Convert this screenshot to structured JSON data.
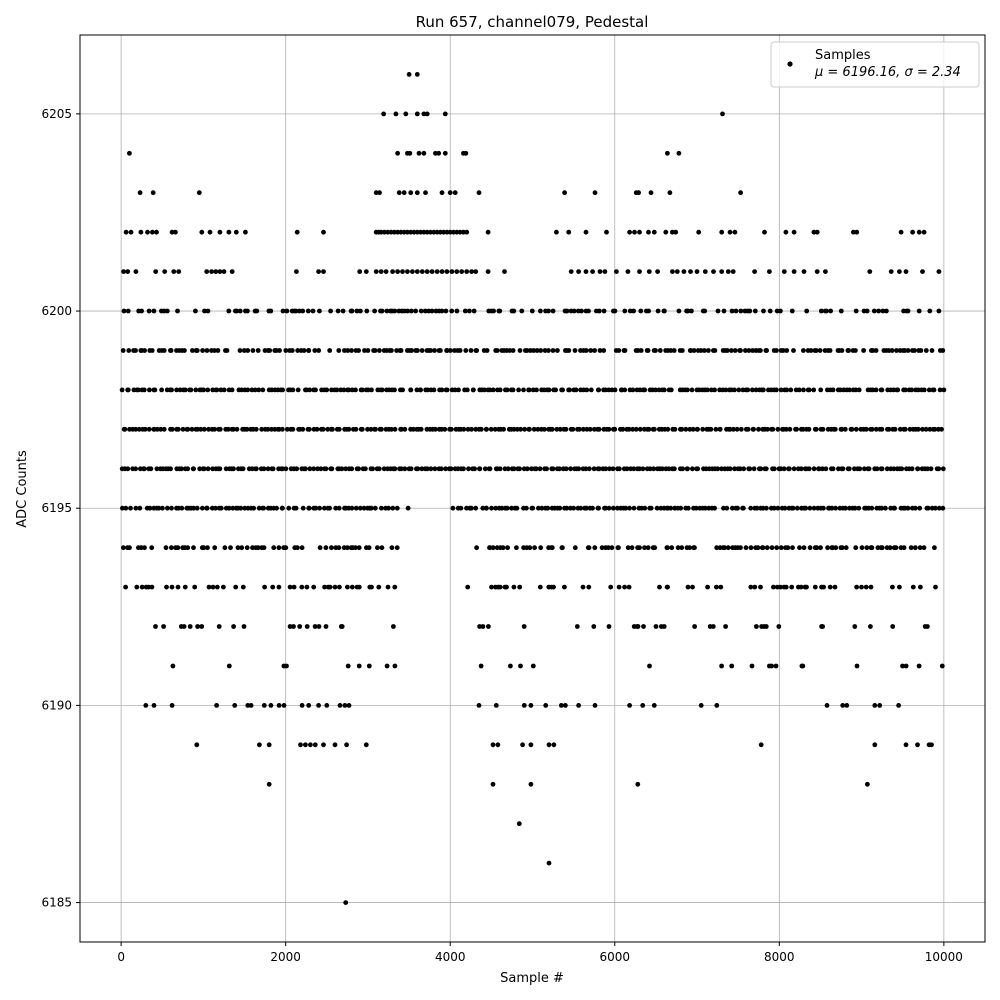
{
  "chart_data": {
    "type": "scatter",
    "title": "Run 657, channel079, Pedestal",
    "xlabel": "Sample #",
    "ylabel": "ADC Counts",
    "xlim": [
      -500,
      10500
    ],
    "ylim": [
      6184,
      6207
    ],
    "xticks": [
      "0",
      "2000",
      "4000",
      "6000",
      "8000",
      "10000"
    ],
    "yticks": [
      "6185",
      "6190",
      "6195",
      "6200",
      "6205"
    ],
    "grid": true,
    "legend": {
      "placement": "top-right",
      "entries": [
        {
          "name": "Samples",
          "stats": "μ = 6196.16, σ = 2.34"
        }
      ]
    },
    "series": [
      {
        "name": "Samples",
        "color": "#000000",
        "marker": "dot",
        "n_samples": 10000,
        "dense_levels": [
          6191,
          6192,
          6193,
          6194,
          6195,
          6196,
          6197,
          6198,
          6199,
          6200
        ],
        "points": [
          {
            "x": 2730,
            "y": 6185
          },
          {
            "x": 5200,
            "y": 6186
          },
          {
            "x": 4840,
            "y": 6187
          },
          {
            "x": 1800,
            "y": 6188
          },
          {
            "x": 4520,
            "y": 6188
          },
          {
            "x": 4980,
            "y": 6188
          },
          {
            "x": 6280,
            "y": 6188
          },
          {
            "x": 9070,
            "y": 6188
          },
          {
            "x": 920,
            "y": 6189
          },
          {
            "x": 1680,
            "y": 6189
          },
          {
            "x": 1800,
            "y": 6189
          },
          {
            "x": 2180,
            "y": 6189
          },
          {
            "x": 2240,
            "y": 6189
          },
          {
            "x": 2300,
            "y": 6189
          },
          {
            "x": 2360,
            "y": 6189
          },
          {
            "x": 2460,
            "y": 6189
          },
          {
            "x": 2600,
            "y": 6189
          },
          {
            "x": 2740,
            "y": 6189
          },
          {
            "x": 2980,
            "y": 6189
          },
          {
            "x": 4520,
            "y": 6189
          },
          {
            "x": 4580,
            "y": 6189
          },
          {
            "x": 4880,
            "y": 6189
          },
          {
            "x": 4980,
            "y": 6189
          },
          {
            "x": 5200,
            "y": 6189
          },
          {
            "x": 5260,
            "y": 6189
          },
          {
            "x": 7780,
            "y": 6189
          },
          {
            "x": 9160,
            "y": 6189
          },
          {
            "x": 9540,
            "y": 6189
          },
          {
            "x": 9680,
            "y": 6189
          },
          {
            "x": 9820,
            "y": 6189
          },
          {
            "x": 9850,
            "y": 6189
          },
          {
            "x": 300,
            "y": 6190
          },
          {
            "x": 400,
            "y": 6190
          },
          {
            "x": 620,
            "y": 6190
          },
          {
            "x": 1160,
            "y": 6190
          },
          {
            "x": 1380,
            "y": 6190
          },
          {
            "x": 1540,
            "y": 6190
          },
          {
            "x": 1580,
            "y": 6190
          },
          {
            "x": 1740,
            "y": 6190
          },
          {
            "x": 1820,
            "y": 6190
          },
          {
            "x": 1920,
            "y": 6190
          },
          {
            "x": 1980,
            "y": 6190
          },
          {
            "x": 2200,
            "y": 6190
          },
          {
            "x": 2280,
            "y": 6190
          },
          {
            "x": 2400,
            "y": 6190
          },
          {
            "x": 2500,
            "y": 6190
          },
          {
            "x": 2660,
            "y": 6190
          },
          {
            "x": 2720,
            "y": 6190
          },
          {
            "x": 2770,
            "y": 6190
          },
          {
            "x": 4350,
            "y": 6190
          },
          {
            "x": 4560,
            "y": 6190
          },
          {
            "x": 4900,
            "y": 6190
          },
          {
            "x": 4980,
            "y": 6190
          },
          {
            "x": 5160,
            "y": 6190
          },
          {
            "x": 5350,
            "y": 6190
          },
          {
            "x": 5400,
            "y": 6190
          },
          {
            "x": 5560,
            "y": 6190
          },
          {
            "x": 5760,
            "y": 6190
          },
          {
            "x": 6180,
            "y": 6190
          },
          {
            "x": 6340,
            "y": 6190
          },
          {
            "x": 6480,
            "y": 6190
          },
          {
            "x": 7050,
            "y": 6190
          },
          {
            "x": 7240,
            "y": 6190
          },
          {
            "x": 8580,
            "y": 6190
          },
          {
            "x": 8770,
            "y": 6190
          },
          {
            "x": 8820,
            "y": 6190
          },
          {
            "x": 9160,
            "y": 6190
          },
          {
            "x": 9220,
            "y": 6190
          },
          {
            "x": 9450,
            "y": 6190
          },
          {
            "x": 100,
            "y": 6204
          },
          {
            "x": 3360,
            "y": 6204
          },
          {
            "x": 3480,
            "y": 6204
          },
          {
            "x": 3510,
            "y": 6204
          },
          {
            "x": 3620,
            "y": 6204
          },
          {
            "x": 3680,
            "y": 6204
          },
          {
            "x": 3820,
            "y": 6204
          },
          {
            "x": 3860,
            "y": 6204
          },
          {
            "x": 3940,
            "y": 6204
          },
          {
            "x": 4160,
            "y": 6204
          },
          {
            "x": 4190,
            "y": 6204
          },
          {
            "x": 6640,
            "y": 6204
          },
          {
            "x": 6780,
            "y": 6204
          },
          {
            "x": 3190,
            "y": 6205
          },
          {
            "x": 3340,
            "y": 6205
          },
          {
            "x": 3460,
            "y": 6205
          },
          {
            "x": 3600,
            "y": 6205
          },
          {
            "x": 3680,
            "y": 6205
          },
          {
            "x": 3720,
            "y": 6205
          },
          {
            "x": 3940,
            "y": 6205
          },
          {
            "x": 7310,
            "y": 6205
          },
          {
            "x": 3500,
            "y": 6206
          },
          {
            "x": 3600,
            "y": 6206
          },
          {
            "x": 230,
            "y": 6203
          },
          {
            "x": 390,
            "y": 6203
          },
          {
            "x": 950,
            "y": 6203
          },
          {
            "x": 3100,
            "y": 6203
          },
          {
            "x": 3140,
            "y": 6203
          },
          {
            "x": 3380,
            "y": 6203
          },
          {
            "x": 3440,
            "y": 6203
          },
          {
            "x": 3520,
            "y": 6203
          },
          {
            "x": 3600,
            "y": 6203
          },
          {
            "x": 3700,
            "y": 6203
          },
          {
            "x": 3900,
            "y": 6203
          },
          {
            "x": 4000,
            "y": 6203
          },
          {
            "x": 4060,
            "y": 6203
          },
          {
            "x": 4350,
            "y": 6203
          },
          {
            "x": 5390,
            "y": 6203
          },
          {
            "x": 5760,
            "y": 6203
          },
          {
            "x": 6260,
            "y": 6203
          },
          {
            "x": 6290,
            "y": 6203
          },
          {
            "x": 6440,
            "y": 6203
          },
          {
            "x": 6670,
            "y": 6203
          },
          {
            "x": 7530,
            "y": 6203
          }
        ],
        "note_levels": {
          "6202": [
            60,
            120,
            240,
            320,
            380,
            430,
            620,
            660,
            980,
            1080,
            1200,
            1310,
            1400,
            1510,
            2140,
            2460,
            3100,
            3130,
            3160,
            3200,
            3240,
            3280,
            3320,
            3360,
            3400,
            3440,
            3480,
            3520,
            3560,
            3600,
            3640,
            3680,
            3720,
            3760,
            3800,
            3840,
            3880,
            3920,
            3960,
            4000,
            4040,
            4080,
            4120,
            4160,
            4200,
            4460,
            5290,
            5440,
            5650,
            5900,
            6180,
            6240,
            6300,
            6410,
            6480,
            6620,
            6700,
            6740,
            7020,
            7300,
            7400,
            7460,
            7820,
            8080,
            8180,
            8420,
            8460,
            8900,
            8940,
            9480,
            9620,
            9700,
            9760
          ],
          "6201": [
            30,
            80,
            180,
            420,
            530,
            640,
            700,
            1040,
            1100,
            1150,
            1200,
            1250,
            1350,
            2130,
            2400,
            2460,
            2900,
            2980,
            3100,
            3160,
            3220,
            3300,
            3360,
            3420,
            3480,
            3540,
            3600,
            3660,
            3720,
            3780,
            3840,
            3900,
            3960,
            4020,
            4080,
            4140,
            4200,
            4260,
            4310,
            4460,
            4660,
            5470,
            5560,
            5650,
            5730,
            5820,
            5880,
            6020,
            6160,
            6300,
            6420,
            6520,
            6700,
            6760,
            6840,
            6920,
            7000,
            7100,
            7200,
            7300,
            7380,
            7440,
            7700,
            7880,
            8060,
            8180,
            8300,
            8460,
            8560,
            9100,
            9360,
            9460,
            9540,
            9740,
            9940
          ]
        }
      }
    ]
  }
}
